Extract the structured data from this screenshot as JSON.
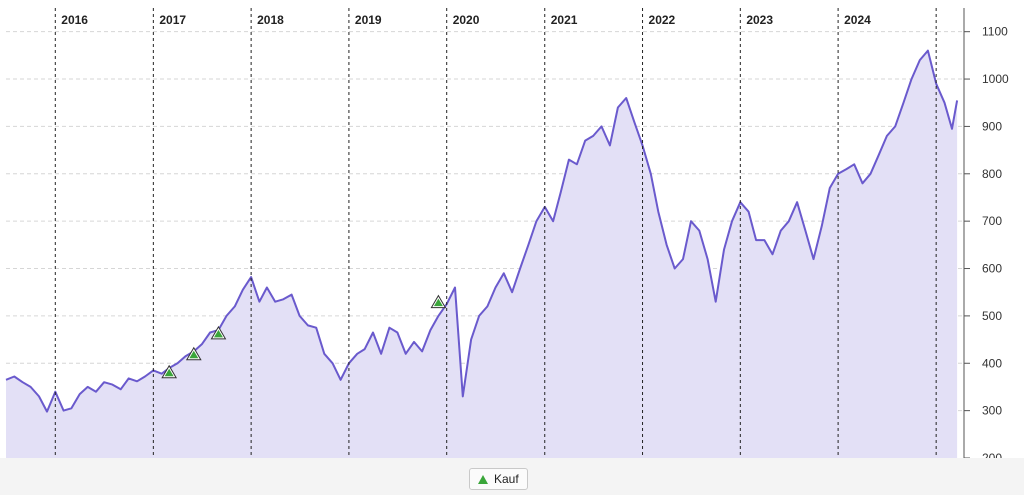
{
  "chart_data": {
    "type": "area",
    "title": "",
    "xlabel": "",
    "ylabel": "",
    "x_range": [
      "2015-07-01",
      "2025-03-31"
    ],
    "ylim": [
      200,
      1150
    ],
    "year_labels": [
      "2016",
      "2017",
      "2018",
      "2019",
      "2020",
      "2021",
      "2022",
      "2023",
      "2024"
    ],
    "year_starts": [
      "2016-01-01",
      "2017-01-01",
      "2018-01-01",
      "2019-01-01",
      "2020-01-01",
      "2021-01-01",
      "2022-01-01",
      "2023-01-01",
      "2024-01-01",
      "2025-01-01"
    ],
    "y_ticks": [
      200,
      300,
      400,
      500,
      600,
      700,
      800,
      900,
      1000,
      1100
    ],
    "grid": true,
    "legend_position": "bottom-center",
    "colors": {
      "line": "#6a5acd",
      "fill": "#e3e0f6",
      "marker": "#3aa63a",
      "grid": "#d6d6d6"
    },
    "series": [
      {
        "name": "",
        "points": [
          [
            "2015-07-01",
            365
          ],
          [
            "2015-08-01",
            372
          ],
          [
            "2015-09-01",
            360
          ],
          [
            "2015-10-01",
            350
          ],
          [
            "2015-11-01",
            330
          ],
          [
            "2015-12-01",
            298
          ],
          [
            "2016-01-01",
            340
          ],
          [
            "2016-02-01",
            300
          ],
          [
            "2016-03-01",
            305
          ],
          [
            "2016-04-01",
            335
          ],
          [
            "2016-05-01",
            350
          ],
          [
            "2016-06-01",
            340
          ],
          [
            "2016-07-01",
            360
          ],
          [
            "2016-08-01",
            355
          ],
          [
            "2016-09-01",
            345
          ],
          [
            "2016-10-01",
            368
          ],
          [
            "2016-11-01",
            362
          ],
          [
            "2016-12-01",
            372
          ],
          [
            "2017-01-01",
            385
          ],
          [
            "2017-02-01",
            378
          ],
          [
            "2017-03-01",
            390
          ],
          [
            "2017-04-01",
            400
          ],
          [
            "2017-05-01",
            415
          ],
          [
            "2017-06-01",
            425
          ],
          [
            "2017-07-01",
            440
          ],
          [
            "2017-08-01",
            465
          ],
          [
            "2017-09-01",
            470
          ],
          [
            "2017-10-01",
            500
          ],
          [
            "2017-11-01",
            520
          ],
          [
            "2017-12-01",
            555
          ],
          [
            "2018-01-01",
            582
          ],
          [
            "2018-02-01",
            530
          ],
          [
            "2018-03-01",
            560
          ],
          [
            "2018-04-01",
            530
          ],
          [
            "2018-05-01",
            535
          ],
          [
            "2018-06-01",
            545
          ],
          [
            "2018-07-01",
            500
          ],
          [
            "2018-08-01",
            480
          ],
          [
            "2018-09-01",
            475
          ],
          [
            "2018-10-01",
            420
          ],
          [
            "2018-11-01",
            400
          ],
          [
            "2018-12-01",
            365
          ],
          [
            "2019-01-01",
            400
          ],
          [
            "2019-02-01",
            420
          ],
          [
            "2019-03-01",
            430
          ],
          [
            "2019-04-01",
            465
          ],
          [
            "2019-05-01",
            420
          ],
          [
            "2019-06-01",
            475
          ],
          [
            "2019-07-01",
            465
          ],
          [
            "2019-08-01",
            420
          ],
          [
            "2019-09-01",
            445
          ],
          [
            "2019-10-01",
            425
          ],
          [
            "2019-11-01",
            470
          ],
          [
            "2019-12-01",
            500
          ],
          [
            "2020-01-01",
            525
          ],
          [
            "2020-02-01",
            560
          ],
          [
            "2020-03-01",
            330
          ],
          [
            "2020-04-01",
            450
          ],
          [
            "2020-05-01",
            500
          ],
          [
            "2020-06-01",
            520
          ],
          [
            "2020-07-01",
            560
          ],
          [
            "2020-08-01",
            590
          ],
          [
            "2020-09-01",
            550
          ],
          [
            "2020-10-01",
            600
          ],
          [
            "2020-11-01",
            650
          ],
          [
            "2020-12-01",
            700
          ],
          [
            "2021-01-01",
            730
          ],
          [
            "2021-02-01",
            700
          ],
          [
            "2021-03-01",
            760
          ],
          [
            "2021-04-01",
            830
          ],
          [
            "2021-05-01",
            820
          ],
          [
            "2021-06-01",
            870
          ],
          [
            "2021-07-01",
            880
          ],
          [
            "2021-08-01",
            900
          ],
          [
            "2021-09-01",
            860
          ],
          [
            "2021-10-01",
            940
          ],
          [
            "2021-11-01",
            960
          ],
          [
            "2021-12-01",
            910
          ],
          [
            "2022-01-01",
            860
          ],
          [
            "2022-02-01",
            800
          ],
          [
            "2022-03-01",
            720
          ],
          [
            "2022-04-01",
            650
          ],
          [
            "2022-05-01",
            600
          ],
          [
            "2022-06-01",
            620
          ],
          [
            "2022-07-01",
            700
          ],
          [
            "2022-08-01",
            680
          ],
          [
            "2022-09-01",
            620
          ],
          [
            "2022-10-01",
            530
          ],
          [
            "2022-11-01",
            640
          ],
          [
            "2022-12-01",
            700
          ],
          [
            "2023-01-01",
            740
          ],
          [
            "2023-02-01",
            720
          ],
          [
            "2023-03-01",
            660
          ],
          [
            "2023-04-01",
            660
          ],
          [
            "2023-05-01",
            630
          ],
          [
            "2023-06-01",
            680
          ],
          [
            "2023-07-01",
            700
          ],
          [
            "2023-08-01",
            740
          ],
          [
            "2023-09-01",
            680
          ],
          [
            "2023-10-01",
            620
          ],
          [
            "2023-11-01",
            690
          ],
          [
            "2023-12-01",
            770
          ],
          [
            "2024-01-01",
            800
          ],
          [
            "2024-02-01",
            810
          ],
          [
            "2024-03-01",
            820
          ],
          [
            "2024-04-01",
            780
          ],
          [
            "2024-05-01",
            800
          ],
          [
            "2024-06-01",
            840
          ],
          [
            "2024-07-01",
            880
          ],
          [
            "2024-08-01",
            900
          ],
          [
            "2024-09-01",
            950
          ],
          [
            "2024-10-01",
            1000
          ],
          [
            "2024-11-01",
            1040
          ],
          [
            "2024-12-01",
            1060
          ],
          [
            "2025-01-01",
            990
          ],
          [
            "2025-02-01",
            950
          ],
          [
            "2025-03-01",
            895
          ],
          [
            "2025-03-20",
            955
          ]
        ]
      }
    ],
    "markers": [
      {
        "label": "Kauf",
        "x": "2017-03-01",
        "y": 380
      },
      {
        "label": "Kauf",
        "x": "2017-06-01",
        "y": 418
      },
      {
        "label": "Kauf",
        "x": "2017-09-01",
        "y": 462
      },
      {
        "label": "Kauf",
        "x": "2019-12-01",
        "y": 528
      }
    ],
    "legend": [
      {
        "label": "Kauf",
        "symbol": "triangle-up"
      }
    ]
  }
}
